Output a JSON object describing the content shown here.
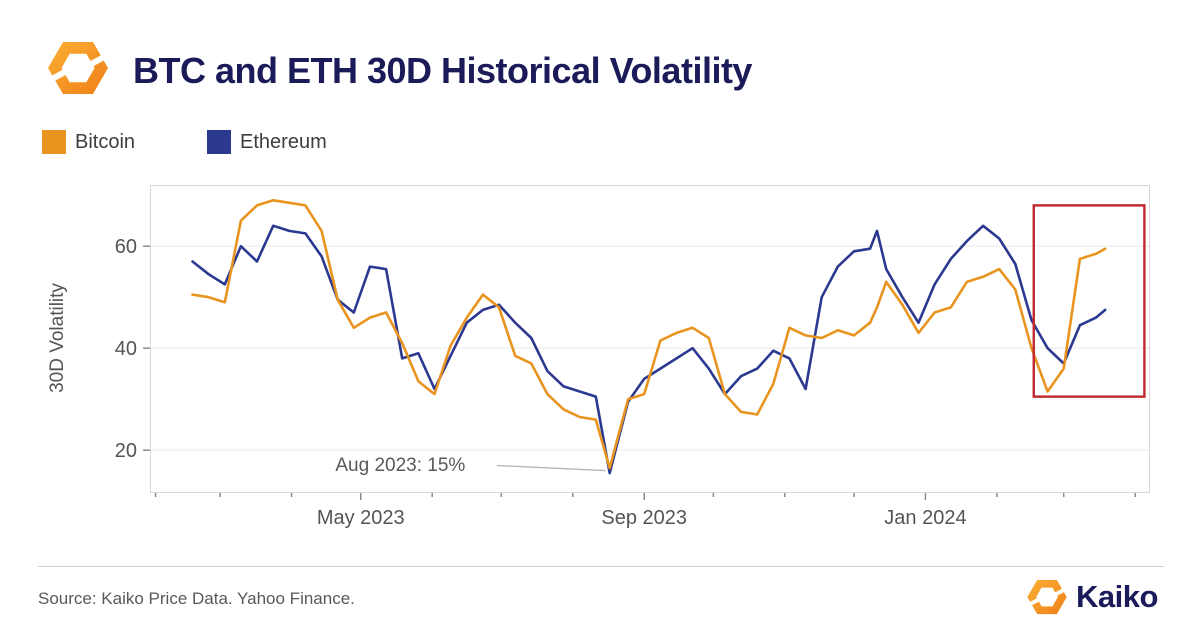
{
  "header": {
    "title": "BTC and ETH 30D Historical Volatility"
  },
  "legend": {
    "items": [
      {
        "label": "Bitcoin",
        "color": "#E8941F"
      },
      {
        "label": "Ethereum",
        "color": "#2B3990"
      }
    ]
  },
  "footer": {
    "source": "Source: Kaiko Price Data. Yahoo Finance.",
    "brand": "Kaiko"
  },
  "brand_colors": {
    "navy": "#1B1B5A",
    "orange": "#F7941D",
    "orange_light": "#FBB034",
    "highlight_red": "#C2272D"
  },
  "chart_data": {
    "type": "line",
    "title": "BTC and ETH 30D Historical Volatility",
    "ylabel": "30D Volatility",
    "xlabel": "",
    "grid": "horizontal-only",
    "legend_position": "top-left-above-plot",
    "xlim": [
      "2023-01-30",
      "2024-04-07"
    ],
    "ylim": [
      11.8,
      71.8
    ],
    "y_ticks": [
      20,
      40,
      60
    ],
    "x_ticks": [
      {
        "date": "2023-02-01",
        "label": ""
      },
      {
        "date": "2023-03-01",
        "label": ""
      },
      {
        "date": "2023-04-01",
        "label": ""
      },
      {
        "date": "2023-05-01",
        "label": "May 2023"
      },
      {
        "date": "2023-06-01",
        "label": ""
      },
      {
        "date": "2023-07-01",
        "label": ""
      },
      {
        "date": "2023-08-01",
        "label": ""
      },
      {
        "date": "2023-09-01",
        "label": "Sep 2023"
      },
      {
        "date": "2023-10-01",
        "label": ""
      },
      {
        "date": "2023-11-01",
        "label": ""
      },
      {
        "date": "2023-12-01",
        "label": ""
      },
      {
        "date": "2024-01-01",
        "label": "Jan 2024"
      },
      {
        "date": "2024-02-01",
        "label": ""
      },
      {
        "date": "2024-03-01",
        "label": ""
      },
      {
        "date": "2024-04-01",
        "label": ""
      }
    ],
    "dates": [
      "2023-02-17",
      "2023-02-24",
      "2023-03-03",
      "2023-03-10",
      "2023-03-17",
      "2023-03-24",
      "2023-03-31",
      "2023-04-07",
      "2023-04-14",
      "2023-04-21",
      "2023-04-28",
      "2023-05-05",
      "2023-05-12",
      "2023-05-19",
      "2023-05-26",
      "2023-06-02",
      "2023-06-09",
      "2023-06-16",
      "2023-06-23",
      "2023-06-30",
      "2023-07-07",
      "2023-07-14",
      "2023-07-21",
      "2023-07-28",
      "2023-08-04",
      "2023-08-11",
      "2023-08-17",
      "2023-08-25",
      "2023-09-01",
      "2023-09-08",
      "2023-09-15",
      "2023-09-22",
      "2023-09-29",
      "2023-10-06",
      "2023-10-13",
      "2023-10-20",
      "2023-10-27",
      "2023-11-03",
      "2023-11-10",
      "2023-11-17",
      "2023-11-24",
      "2023-12-01",
      "2023-12-08",
      "2023-12-11",
      "2023-12-15",
      "2023-12-22",
      "2023-12-29",
      "2024-01-05",
      "2024-01-12",
      "2024-01-19",
      "2024-01-26",
      "2024-02-02",
      "2024-02-09",
      "2024-02-16",
      "2024-02-23",
      "2024-03-01",
      "2024-03-08",
      "2024-03-15",
      "2024-03-19"
    ],
    "series": [
      {
        "id": "ethereum",
        "name": "Ethereum",
        "color": "#2B3990",
        "values": [
          57,
          54.5,
          52.5,
          60,
          57,
          64,
          63,
          62.5,
          58,
          49.5,
          47,
          56,
          55.5,
          38,
          39,
          32,
          38.5,
          45,
          47.5,
          48.5,
          45,
          42,
          35.5,
          32.5,
          31.5,
          30.5,
          15.5,
          29.5,
          34,
          36,
          38,
          40,
          36,
          31,
          34.5,
          36,
          39.5,
          38,
          32,
          50,
          56,
          59,
          59.5,
          63,
          55.5,
          50,
          45,
          52.5,
          57.5,
          61,
          64,
          61.5,
          56.5,
          45.5,
          40,
          37,
          44.5,
          46,
          47.5
        ]
      },
      {
        "id": "bitcoin",
        "name": "Bitcoin",
        "color": "#E8941F",
        "values": [
          50.5,
          50,
          49,
          65,
          68,
          69,
          68.5,
          68,
          63,
          49.5,
          44,
          46,
          47,
          41,
          33.5,
          31,
          40.5,
          46,
          50.5,
          48,
          38.5,
          37,
          31,
          28,
          26.5,
          26,
          16.5,
          30,
          31,
          41.5,
          43,
          44,
          42,
          31,
          27.5,
          27,
          33,
          44,
          42.5,
          42,
          43.5,
          42.5,
          45,
          48,
          53,
          48.5,
          43,
          47,
          48,
          53,
          54,
          55.5,
          51.5,
          40,
          31.5,
          36,
          57.5,
          58.5,
          59.5
        ]
      }
    ],
    "annotation": {
      "text": "Aug 2023: 15%",
      "target_date": "2023-08-17",
      "target_value": 15.5,
      "text_date": "2023-04-20",
      "text_value": 17.3,
      "leader_from_date": "2023-06-29",
      "leader_from_value": 17.0,
      "leader_to_date": "2023-08-15",
      "leader_to_value": 16.0
    },
    "highlight_box": {
      "from_date": "2024-02-17",
      "to_date": "2024-04-05",
      "value_min": 30.5,
      "value_max": 68,
      "color": "#C2272D"
    }
  }
}
